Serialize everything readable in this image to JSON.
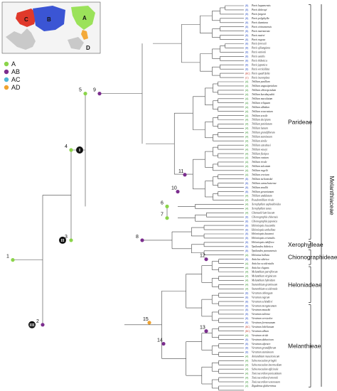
{
  "map": {
    "regions": [
      {
        "letter": "A",
        "color": "#9be25a"
      },
      {
        "letter": "B",
        "color": "#e0392b"
      },
      {
        "letter": "C",
        "color": "#3b55d4"
      },
      {
        "letter": "D",
        "color": "#f3a93a"
      }
    ]
  },
  "legend": [
    {
      "label": "A",
      "color": "#8bd44a"
    },
    {
      "label": "AB",
      "color": "#7b2d8e"
    },
    {
      "label": "AC",
      "color": "#4fb7d6"
    },
    {
      "label": "AD",
      "color": "#f0a330"
    }
  ],
  "tribes": [
    {
      "label": "Parideae",
      "from": 0,
      "to": 55
    },
    {
      "label": "Xerophylleae",
      "from": 56,
      "to": 57
    },
    {
      "label": "Chionographideae",
      "from": 58,
      "to": 61
    },
    {
      "label": "Heloniadeae",
      "from": 62,
      "to": 70
    },
    {
      "label": "Melanthieae",
      "from": 71,
      "to": 101
    }
  ],
  "family": "Melanthiaceae",
  "nodes": [
    {
      "num": "1"
    },
    {
      "num": "2"
    },
    {
      "num": "3"
    },
    {
      "num": "4"
    },
    {
      "num": "5"
    },
    {
      "num": "6"
    },
    {
      "num": "7"
    },
    {
      "num": "8"
    },
    {
      "num": "9"
    },
    {
      "num": "10"
    },
    {
      "num": "11"
    },
    {
      "num": "12"
    },
    {
      "num": "13"
    },
    {
      "num": "14"
    },
    {
      "num": "15"
    }
  ],
  "romans": [
    "I",
    "II",
    "III"
  ],
  "taxa": [
    {
      "name": "Paris luquanensis",
      "code": "(B)"
    },
    {
      "name": "Paris delavayi",
      "code": "(B)"
    },
    {
      "name": "Paris fargesii",
      "code": "(B)"
    },
    {
      "name": "Paris polyphylla",
      "code": "(B)"
    },
    {
      "name": "Paris dunniana",
      "code": "(B)"
    },
    {
      "name": "Paris vietnamensis",
      "code": "(B)"
    },
    {
      "name": "Paris marmorata",
      "code": "(B)"
    },
    {
      "name": "Paris mairei",
      "code": "(B)"
    },
    {
      "name": "Paris rugosa",
      "code": "(B)"
    },
    {
      "name": "Paris forrestii",
      "code": "(B)"
    },
    {
      "name": "Paris qiliangiana",
      "code": "(B)"
    },
    {
      "name": "Paris vaniotii",
      "code": "(B)"
    },
    {
      "name": "Paris axialis",
      "code": "(B)"
    },
    {
      "name": "Paris thibetica",
      "code": "(B)"
    },
    {
      "name": "Paris japonica",
      "code": "(B)"
    },
    {
      "name": "Paris verticillata",
      "code": "(B)"
    },
    {
      "name": "Paris quadrifolia",
      "code": "(BC)"
    },
    {
      "name": "Paris incompleta",
      "code": "(C)"
    },
    {
      "name": "Trillium pusillum",
      "code": "(A)"
    },
    {
      "name": "Trillium angustipetalum",
      "code": "(A)"
    },
    {
      "name": "Trillium chloropetalum",
      "code": "(A)"
    },
    {
      "name": "Trillium kurabayashii",
      "code": "(A)"
    },
    {
      "name": "Trillium maculatum",
      "code": "(A)"
    },
    {
      "name": "Trillium reliquum",
      "code": "(A)"
    },
    {
      "name": "Trillium albidum",
      "code": "(A)"
    },
    {
      "name": "Trillium recurvatum",
      "code": "(A)"
    },
    {
      "name": "Trillium sessile",
      "code": "(A)"
    },
    {
      "name": "Trillium decipiens",
      "code": "(A)"
    },
    {
      "name": "Trillium petiolatum",
      "code": "(A)"
    },
    {
      "name": "Trillium luteum",
      "code": "(A)"
    },
    {
      "name": "Trillium grandiflorum",
      "code": "(A)"
    },
    {
      "name": "Trillium stamineum",
      "code": "(A)"
    },
    {
      "name": "Trillium simile",
      "code": "(A)"
    },
    {
      "name": "Trillium catesbaei",
      "code": "(A)"
    },
    {
      "name": "Trillium vaseyi",
      "code": "(A)"
    },
    {
      "name": "Trillium flexipes",
      "code": "(A)"
    },
    {
      "name": "Trillium ovatum",
      "code": "(A)"
    },
    {
      "name": "Trillium rivale",
      "code": "(A)"
    },
    {
      "name": "Trillium sulcatum",
      "code": "(A)"
    },
    {
      "name": "Trillium rugelii",
      "code": "(A)"
    },
    {
      "name": "Trillium erectum",
      "code": "(A)"
    },
    {
      "name": "Trillium tschonoskii",
      "code": "(B)"
    },
    {
      "name": "Trillium camschatcense",
      "code": "(B)"
    },
    {
      "name": "Trillium smallii",
      "code": "(B)"
    },
    {
      "name": "Trillium govanianum",
      "code": "(B)"
    },
    {
      "name": "Trillium undulatum",
      "code": "(A)"
    },
    {
      "name": "Pseudotrillium rivale",
      "code": "(A)"
    },
    {
      "name": "Xerophyllum asphodeloides",
      "code": "(A)"
    },
    {
      "name": "Xerophyllum tenax",
      "code": "(A)"
    },
    {
      "name": "Chamaelirium luteum",
      "code": "(A)"
    },
    {
      "name": "Chionographis chinensis",
      "code": "(B)"
    },
    {
      "name": "Chionographis japonica",
      "code": "(B)"
    },
    {
      "name": "Heloniopsis leucantha",
      "code": "(B)"
    },
    {
      "name": "Heloniopsis umbellata",
      "code": "(B)"
    },
    {
      "name": "Heloniopsis kawanoi",
      "code": "(B)"
    },
    {
      "name": "Heloniopsis orientalis",
      "code": "(B)"
    },
    {
      "name": "Heloniopsis tubiflora",
      "code": "(B)"
    },
    {
      "name": "Ypsilandra thibetica",
      "code": "(B)"
    },
    {
      "name": "Ypsilandra yunnanensis",
      "code": "(B)"
    },
    {
      "name": "Helonias bullata",
      "code": "(A)"
    },
    {
      "name": "Anticlea sibirica",
      "code": "(B)"
    },
    {
      "name": "Anticlea occidentalis",
      "code": "(A)"
    },
    {
      "name": "Anticlea elegans",
      "code": "(A)"
    },
    {
      "name": "Melanthium parviflorum",
      "code": "(A)"
    },
    {
      "name": "Melanthium virginicum",
      "code": "(A)"
    },
    {
      "name": "Melanthium hybridum",
      "code": "(A)"
    },
    {
      "name": "Stenanthium gramineum",
      "code": "(A)"
    },
    {
      "name": "Stenanthium occidentale",
      "code": "(A)"
    },
    {
      "name": "Veratrum oblongum",
      "code": "(B)"
    },
    {
      "name": "Veratrum nigrum",
      "code": "(B)"
    },
    {
      "name": "Veratrum schindleri",
      "code": "(B)"
    },
    {
      "name": "Veratrum mengtzeanum",
      "code": "(B)"
    },
    {
      "name": "Veratrum maackii",
      "code": "(B)"
    },
    {
      "name": "Veratrum taliense",
      "code": "(B)"
    },
    {
      "name": "Veratrum versicolor",
      "code": "(B)"
    },
    {
      "name": "Veratrum formosanum",
      "code": "(B)"
    },
    {
      "name": "Veratrum lobelianum",
      "code": "(BC)"
    },
    {
      "name": "Veratrum album",
      "code": "(BC)"
    },
    {
      "name": "Veratrum viride",
      "code": "(A)"
    },
    {
      "name": "Veratrum dahuricum",
      "code": "(B)"
    },
    {
      "name": "Veratrum alpestre",
      "code": "(B)"
    },
    {
      "name": "Veratrum grandiflorum",
      "code": "(B)"
    },
    {
      "name": "Veratrum stamineum",
      "code": "(B)"
    },
    {
      "name": "Amianthium muscitoxicum",
      "code": "(A)"
    },
    {
      "name": "Schoenocaulon pringlei",
      "code": "(A)"
    },
    {
      "name": "Schoenocaulon intermedium",
      "code": "(A)"
    },
    {
      "name": "Schoenocaulon officinale",
      "code": "(A)"
    },
    {
      "name": "Toxicoscordion paniculatum",
      "code": "(A)"
    },
    {
      "name": "Toxicoscordion fremontii",
      "code": "(A)"
    },
    {
      "name": "Toxicoscordion venenosum",
      "code": "(A)"
    },
    {
      "name": "Zigadenus glaberrimus",
      "code": "(A)"
    }
  ],
  "colors": {
    "A": "#2f8f2a",
    "B": "#2a4fc4",
    "BC": "#c0392b",
    "C": "#c0392b",
    "star": "#2a2a8a"
  }
}
